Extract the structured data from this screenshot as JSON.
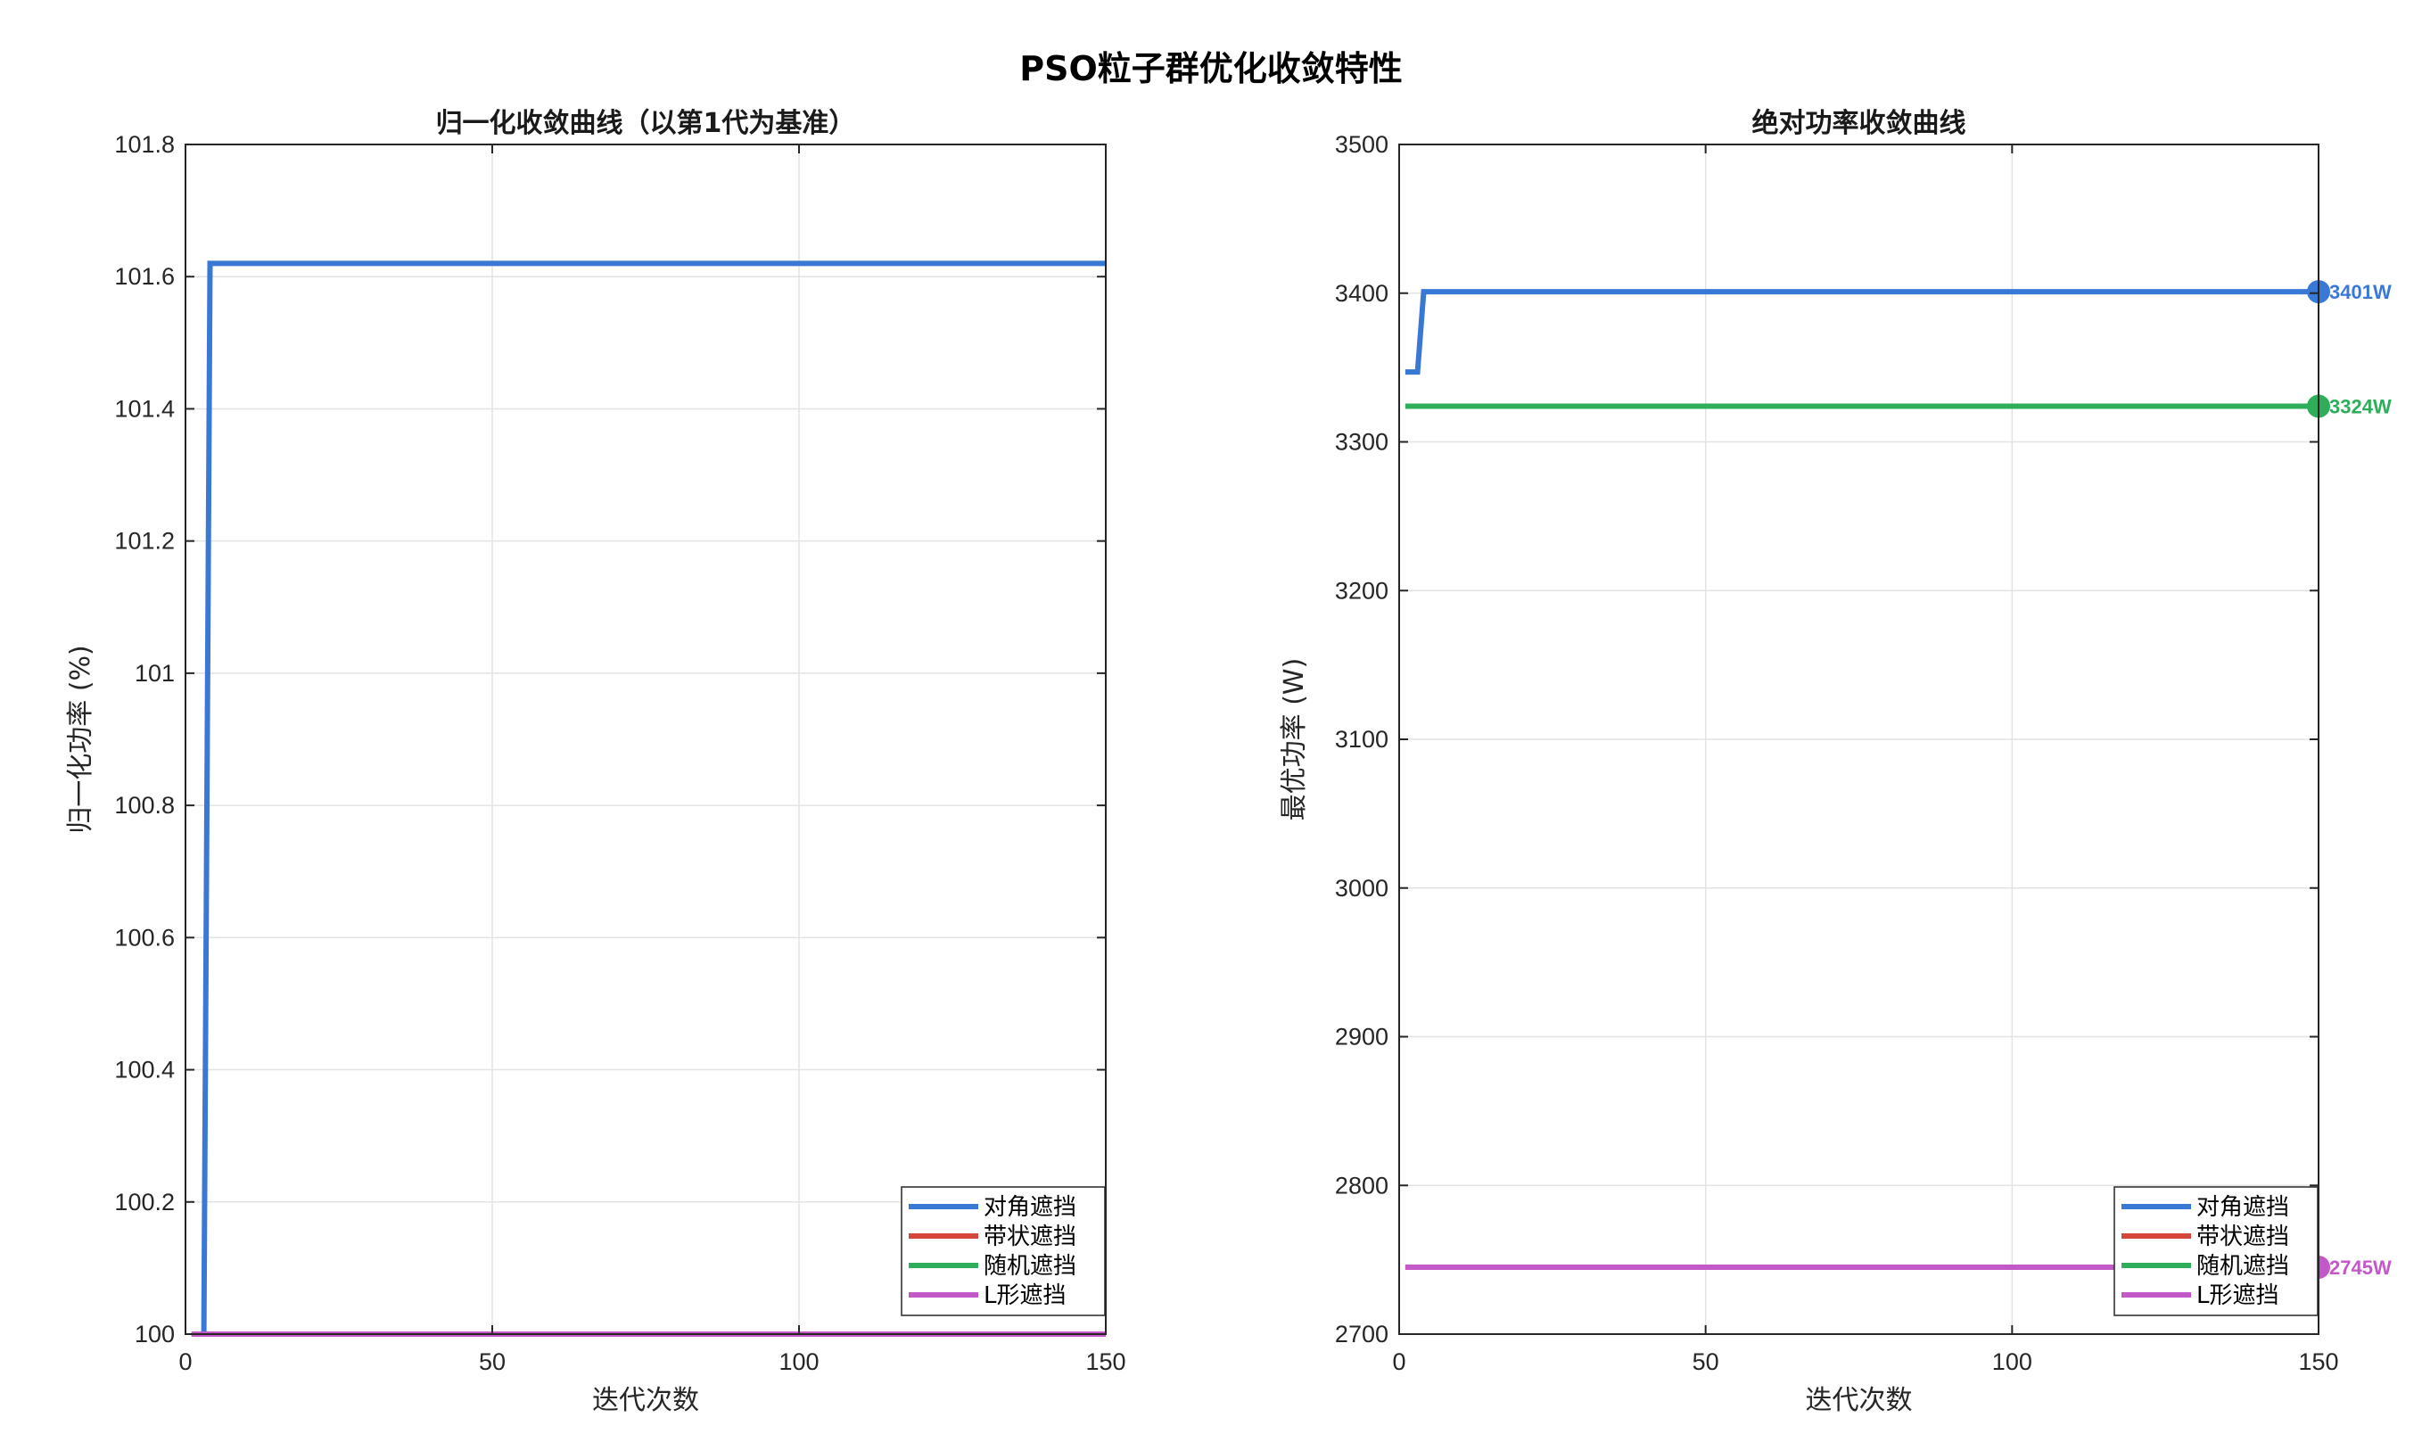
{
  "figure_title": "PSO粒子群优化收敛特性",
  "chart_data": [
    {
      "type": "line",
      "title": "归一化收敛曲线（以第1代为基准）",
      "xlabel": "迭代次数",
      "ylabel": "归一化功率 (%)",
      "xlim": [
        0,
        150
      ],
      "ylim": [
        100,
        101.8
      ],
      "xticks": [
        0,
        50,
        100,
        150
      ],
      "yticks": [
        100,
        100.2,
        100.4,
        100.6,
        100.8,
        101,
        101.2,
        101.4,
        101.6,
        101.8
      ],
      "ytick_labels": [
        "100",
        "100.2",
        "100.4",
        "100.6",
        "100.8",
        "101",
        "101.2",
        "101.4",
        "101.6",
        "101.8"
      ],
      "grid": true,
      "legend_position": "bottom-right",
      "series": [
        {
          "name": "对角遮挡",
          "color": "#3a78d6",
          "points": [
            [
              1,
              100
            ],
            [
              3,
              100
            ],
            [
              4,
              101.62
            ],
            [
              150,
              101.62
            ]
          ]
        },
        {
          "name": "带状遮挡",
          "color": "#d6453a",
          "points": [
            [
              1,
              100
            ],
            [
              150,
              100
            ]
          ]
        },
        {
          "name": "随机遮挡",
          "color": "#2eae5a",
          "points": [
            [
              1,
              100
            ],
            [
              150,
              100
            ]
          ]
        },
        {
          "name": "L形遮挡",
          "color": "#c358c9",
          "points": [
            [
              1,
              100
            ],
            [
              150,
              100
            ]
          ]
        }
      ]
    },
    {
      "type": "line",
      "title": "绝对功率收敛曲线",
      "xlabel": "迭代次数",
      "ylabel": "最优功率 (W)",
      "xlim": [
        0,
        150
      ],
      "ylim": [
        2700,
        3500
      ],
      "xticks": [
        0,
        50,
        100,
        150
      ],
      "yticks": [
        2700,
        2800,
        2900,
        3000,
        3100,
        3200,
        3300,
        3400,
        3500
      ],
      "ytick_labels": [
        "2700",
        "2800",
        "2900",
        "3000",
        "3100",
        "3200",
        "3300",
        "3400",
        "3500"
      ],
      "grid": true,
      "legend_position": "bottom-right",
      "series": [
        {
          "name": "对角遮挡",
          "color": "#3a78d6",
          "points": [
            [
              1,
              3347
            ],
            [
              3,
              3347
            ],
            [
              4,
              3401
            ],
            [
              150,
              3401
            ]
          ],
          "end_label": "3401W"
        },
        {
          "name": "带状遮挡",
          "color": "#d6453a",
          "points": [
            [
              1,
              2745
            ],
            [
              150,
              2745
            ]
          ]
        },
        {
          "name": "随机遮挡",
          "color": "#2eae5a",
          "points": [
            [
              1,
              3324
            ],
            [
              150,
              3324
            ]
          ],
          "end_label": "3324W"
        },
        {
          "name": "L形遮挡",
          "color": "#c358c9",
          "points": [
            [
              1,
              2745
            ],
            [
              150,
              2745
            ]
          ],
          "end_label": "2745W"
        }
      ]
    }
  ]
}
